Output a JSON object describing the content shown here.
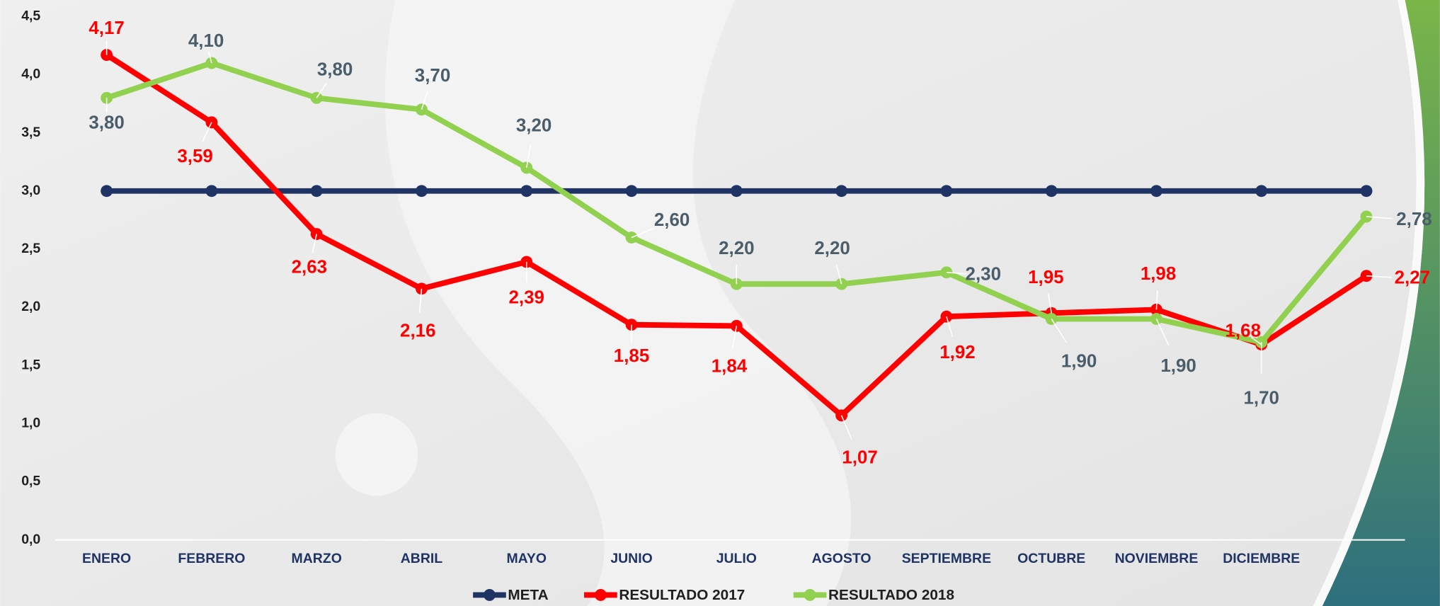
{
  "chart_data": {
    "type": "line",
    "categories": [
      "ENERO",
      "FEBRERO",
      "MARZO",
      "ABRIL",
      "MAYO",
      "JUNIO",
      "JULIO",
      "AGOSTO",
      "SEPTIEMBRE",
      "OCTUBRE",
      "NOVIEMBRE",
      "DICIEMBRE",
      null
    ],
    "series": [
      {
        "name": "META",
        "color": "#1f3464",
        "values": [
          3.0,
          3.0,
          3.0,
          3.0,
          3.0,
          3.0,
          3.0,
          3.0,
          3.0,
          3.0,
          3.0,
          3.0,
          3.0
        ]
      },
      {
        "name": "RESULTADO 2017",
        "color": "#ff0000",
        "label_color": "#ff0000",
        "values": [
          4.17,
          3.59,
          2.63,
          2.16,
          2.39,
          1.85,
          1.84,
          1.07,
          1.92,
          1.95,
          1.98,
          1.68,
          2.27
        ],
        "value_labels": [
          "4,17",
          "3,59",
          "2,63",
          "2,16",
          "2,39",
          "1,85",
          "1,84",
          "1,07",
          "1,92",
          "1,95",
          "1,98",
          "1,68",
          "2,27"
        ]
      },
      {
        "name": "RESULTADO 2018",
        "color": "#92d050",
        "label_color": "#4a5d6b",
        "values": [
          3.8,
          4.1,
          3.8,
          3.7,
          3.2,
          2.6,
          2.2,
          2.2,
          2.3,
          1.9,
          1.9,
          1.7,
          2.78
        ],
        "value_labels": [
          "3,80",
          "4,10",
          "3,80",
          "3,70",
          "3,20",
          "2,60",
          "2,20",
          "2,20",
          "2,30",
          "1,90",
          "1,90",
          "1,70",
          "2,78"
        ]
      }
    ],
    "ylim": [
      0,
      4.5
    ],
    "yticks": [
      {
        "value": 0,
        "label": "0,0"
      },
      {
        "value": 0.5,
        "label": "0,5"
      },
      {
        "value": 1,
        "label": "1,0"
      },
      {
        "value": 1.5,
        "label": "1,5"
      },
      {
        "value": 2,
        "label": "2,0"
      },
      {
        "value": 2.5,
        "label": "2,5"
      },
      {
        "value": 3,
        "label": "3,0"
      },
      {
        "value": 3.5,
        "label": "3,5"
      },
      {
        "value": 4,
        "label": "4,0"
      },
      {
        "value": 4.5,
        "label": "4,5"
      }
    ],
    "legend": "bottom"
  }
}
